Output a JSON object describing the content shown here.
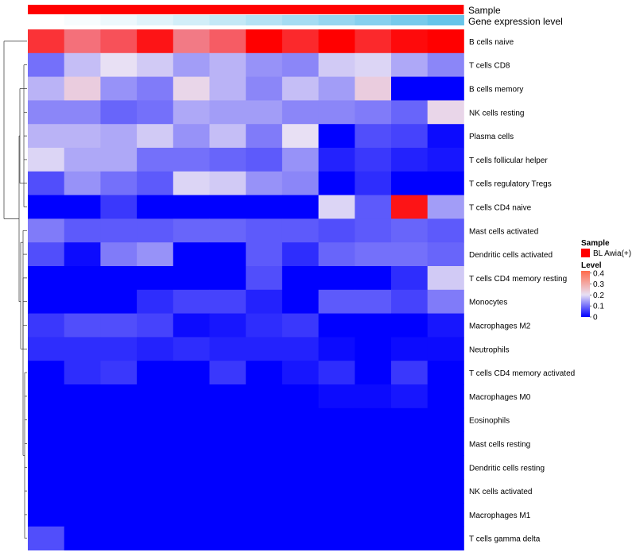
{
  "chart_data": {
    "type": "heatmap",
    "annotation_tracks": [
      {
        "label": "Sample",
        "color": "#ff0000"
      },
      {
        "label": "Gene expression level",
        "colors": [
          "#ffffff",
          "#f7fcfe",
          "#edf8fc",
          "#e0f3fa",
          "#d2eef8",
          "#c3e8f6",
          "#b4e2f4",
          "#a5dcf2",
          "#96d6f0",
          "#86d0ee",
          "#76caeb",
          "#66c4e9",
          "#56bee7",
          "#46b8e5"
        ]
      }
    ],
    "rows": [
      "B cells naive",
      "T cells CD8",
      "B cells memory",
      "NK cells resting",
      "Plasma cells",
      "T cells follicular helper",
      "T cells regulatory  Tregs",
      "T cells CD4 naive",
      "Mast cells activated",
      "Dendritic cells activated",
      "T cells CD4 memory resting",
      "Monocytes",
      "Macrophages M2",
      "Neutrophils",
      "T cells CD4 memory activated",
      "Macrophages M0",
      "Eosinophils",
      "Mast cells resting",
      "Dendritic cells resting",
      "NK cells activated",
      "Macrophages M1",
      "T cells gamma delta"
    ],
    "values": [
      [
        0.37,
        0.31,
        0.34,
        0.4,
        0.3,
        0.33,
        0.42,
        0.38,
        0.42,
        0.38,
        0.41,
        0.42
      ],
      [
        0.1,
        0.17,
        0.2,
        0.18,
        0.14,
        0.16,
        0.13,
        0.12,
        0.18,
        0.19,
        0.15,
        0.12
      ],
      [
        0.16,
        0.22,
        0.13,
        0.11,
        0.21,
        0.16,
        0.12,
        0.17,
        0.14,
        0.22,
        0.0,
        0.0
      ],
      [
        0.12,
        0.12,
        0.09,
        0.1,
        0.15,
        0.14,
        0.14,
        0.12,
        0.12,
        0.11,
        0.09,
        0.21
      ],
      [
        0.16,
        0.16,
        0.15,
        0.18,
        0.13,
        0.17,
        0.11,
        0.2,
        0.0,
        0.07,
        0.06,
        0.01
      ],
      [
        0.19,
        0.15,
        0.15,
        0.1,
        0.1,
        0.09,
        0.08,
        0.13,
        0.03,
        0.05,
        0.03,
        0.02
      ],
      [
        0.07,
        0.13,
        0.1,
        0.08,
        0.19,
        0.18,
        0.13,
        0.12,
        0.0,
        0.04,
        0.0,
        0.0
      ],
      [
        0.0,
        0.0,
        0.05,
        0.0,
        0.0,
        0.0,
        0.0,
        0.0,
        0.19,
        0.08,
        0.4,
        0.14
      ],
      [
        0.11,
        0.08,
        0.08,
        0.08,
        0.09,
        0.09,
        0.08,
        0.08,
        0.07,
        0.08,
        0.09,
        0.08
      ],
      [
        0.07,
        0.01,
        0.11,
        0.13,
        0.0,
        0.0,
        0.08,
        0.04,
        0.09,
        0.1,
        0.1,
        0.09
      ],
      [
        0.0,
        0.0,
        0.0,
        0.0,
        0.0,
        0.0,
        0.07,
        0.0,
        0.0,
        0.0,
        0.04,
        0.18
      ],
      [
        0.0,
        0.0,
        0.0,
        0.04,
        0.06,
        0.06,
        0.03,
        0.0,
        0.08,
        0.08,
        0.06,
        0.11
      ],
      [
        0.05,
        0.07,
        0.07,
        0.06,
        0.01,
        0.02,
        0.04,
        0.05,
        0.0,
        0.0,
        0.0,
        0.02
      ],
      [
        0.04,
        0.04,
        0.04,
        0.03,
        0.04,
        0.03,
        0.03,
        0.03,
        0.01,
        0.0,
        0.01,
        0.01
      ],
      [
        0.0,
        0.04,
        0.05,
        0.0,
        0.0,
        0.05,
        0.0,
        0.02,
        0.04,
        0.0,
        0.05,
        0.0
      ],
      [
        0.0,
        0.0,
        0.0,
        0.0,
        0.0,
        0.0,
        0.0,
        0.0,
        0.01,
        0.01,
        0.02,
        0.0
      ],
      [
        0.0,
        0.0,
        0.0,
        0.0,
        0.0,
        0.0,
        0.0,
        0.0,
        0.0,
        0.0,
        0.0,
        0.0
      ],
      [
        0.0,
        0.0,
        0.0,
        0.0,
        0.0,
        0.0,
        0.0,
        0.0,
        0.0,
        0.0,
        0.0,
        0.0
      ],
      [
        0.0,
        0.0,
        0.0,
        0.0,
        0.0,
        0.0,
        0.0,
        0.0,
        0.0,
        0.0,
        0.0,
        0.0
      ],
      [
        0.0,
        0.0,
        0.0,
        0.0,
        0.0,
        0.0,
        0.0,
        0.0,
        0.0,
        0.0,
        0.0,
        0.0
      ],
      [
        0.0,
        0.0,
        0.0,
        0.0,
        0.0,
        0.0,
        0.0,
        0.0,
        0.0,
        0.0,
        0.0,
        0.0
      ],
      [
        0.07,
        0.0,
        0.0,
        0.0,
        0.0,
        0.0,
        0.0,
        0.0,
        0.0,
        0.0,
        0.0,
        0.0
      ]
    ],
    "color_scale": {
      "range": [
        0,
        0.42
      ],
      "stops": [
        {
          "value": 0.0,
          "color": "#0000ff"
        },
        {
          "value": 0.2,
          "color": "#e8e0f4"
        },
        {
          "value": 0.42,
          "color": "#ff0000"
        }
      ]
    },
    "legend_sample": {
      "title": "Sample",
      "entries": [
        {
          "label": "BL Awia(+)",
          "color": "#ff0000"
        }
      ]
    },
    "legend_level": {
      "title": "Level",
      "ticks": [
        "0.4",
        "0.3",
        "0.2",
        "0.1",
        "0"
      ]
    },
    "row_dendrogram": true,
    "legend_placement": "right"
  }
}
